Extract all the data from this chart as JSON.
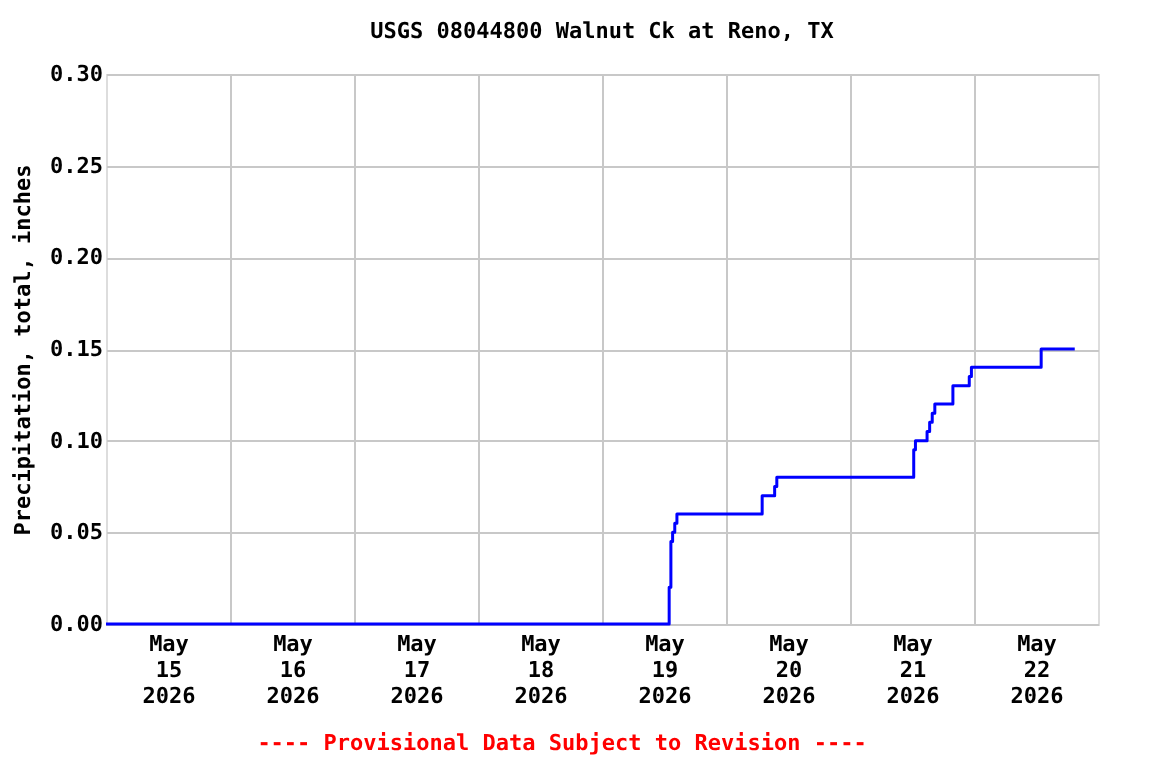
{
  "chart_data": {
    "type": "step",
    "title": "USGS 08044800 Walnut Ck at Reno, TX",
    "ylabel": "Precipitation, total, inches",
    "x": [
      "2026-05-15T00:00",
      "2026-05-19T13:00",
      "2026-05-19T13:20",
      "2026-05-19T13:40",
      "2026-05-19T14:05",
      "2026-05-19T14:30",
      "2026-05-20T07:00",
      "2026-05-20T09:25",
      "2026-05-20T09:50",
      "2026-05-21T12:20",
      "2026-05-21T12:40",
      "2026-05-21T14:55",
      "2026-05-21T15:25",
      "2026-05-21T15:55",
      "2026-05-21T16:25",
      "2026-05-21T19:55",
      "2026-05-21T23:05",
      "2026-05-21T23:30",
      "2026-05-22T13:00",
      "2026-05-22T19:30"
    ],
    "series": [
      {
        "color": "#0000ff",
        "values": [
          0,
          0.02,
          0.045,
          0.05,
          0.055,
          0.06,
          0.07,
          0.075,
          0.08,
          0.095,
          0.1,
          0.105,
          0.11,
          0.115,
          0.12,
          0.13,
          0.135,
          0.14,
          0.15,
          0.15
        ]
      }
    ],
    "xlim": [
      "2026-05-15T00:00",
      "2026-05-23T00:00"
    ],
    "xticks": [
      {
        "value": "2026-05-15T12:00",
        "label": "May 15 2026"
      },
      {
        "value": "2026-05-16T00:00",
        "label": null
      },
      {
        "value": "2026-05-16T12:00",
        "label": "May 16 2026"
      },
      {
        "value": "2026-05-17T00:00",
        "label": null
      },
      {
        "value": "2026-05-17T12:00",
        "label": "May 17 2026"
      },
      {
        "value": "2026-05-18T00:00",
        "label": null
      },
      {
        "value": "2026-05-18T12:00",
        "label": "May 18 2026"
      },
      {
        "value": "2026-05-19T00:00",
        "label": null
      },
      {
        "value": "2026-05-19T12:00",
        "label": "May 19 2026"
      },
      {
        "value": "2026-05-20T00:00",
        "label": null
      },
      {
        "value": "2026-05-20T12:00",
        "label": "May 20 2026"
      },
      {
        "value": "2026-05-21T00:00",
        "label": null
      },
      {
        "value": "2026-05-21T12:00",
        "label": "May 21 2026"
      },
      {
        "value": "2026-05-22T00:00",
        "label": null
      },
      {
        "value": "2026-05-22T12:00",
        "label": "May 22 2026"
      }
    ],
    "ylim": [
      0,
      0.3
    ],
    "yticks": [
      {
        "value": 0,
        "label": "0.00"
      },
      {
        "value": 0.05,
        "label": "0.05"
      },
      {
        "value": 0.1,
        "label": "0.10"
      },
      {
        "value": 0.15,
        "label": "0.15"
      },
      {
        "value": 0.2,
        "label": "0.20"
      },
      {
        "value": 0.25,
        "label": "0.25"
      },
      {
        "value": 0.3,
        "label": "0.30"
      }
    ],
    "grid": true,
    "marker": "none",
    "line_style": "solid",
    "annotations": [
      "---- Provisional Data Subject to Revision ----"
    ]
  }
}
